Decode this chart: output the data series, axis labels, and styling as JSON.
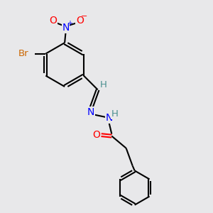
{
  "bg_color": "#e8e8ea",
  "bond_color": "#000000",
  "bond_width": 1.5,
  "atom_colors": {
    "N": "#0000ff",
    "O": "#ff0000",
    "Br": "#cc6600",
    "C": "#000000",
    "H": "#4a9090"
  },
  "font_size": 9,
  "fig_size": [
    3.0,
    3.0
  ],
  "dpi": 100
}
